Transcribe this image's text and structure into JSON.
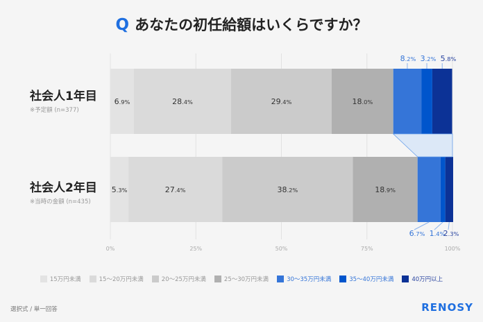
{
  "title": {
    "q": "Q",
    "text": "あなたの初任給額はいくらですか？"
  },
  "chart_data": {
    "type": "stacked-bar-horizontal",
    "categories": [
      {
        "label": "社会人1年目",
        "note": "※予定額 (n=377)"
      },
      {
        "label": "社会人2年目",
        "note": "※当時の金額 (n=435)"
      }
    ],
    "series": [
      {
        "name": "15万円未満",
        "color": "#e3e3e3",
        "values": [
          6.9,
          5.3
        ]
      },
      {
        "name": "15〜20万円未満",
        "color": "#dadada",
        "values": [
          28.4,
          27.4
        ]
      },
      {
        "name": "20〜25万円未満",
        "color": "#cbcbcb",
        "values": [
          29.4,
          38.2
        ]
      },
      {
        "name": "25〜30万円未満",
        "color": "#b0b0b0",
        "values": [
          18.0,
          18.9
        ]
      },
      {
        "name": "30〜35万円未満",
        "color": "#3575d8",
        "values": [
          8.2,
          6.7
        ]
      },
      {
        "name": "35〜40万円未満",
        "color": "#0055cc",
        "values": [
          3.2,
          1.4
        ]
      },
      {
        "name": "40万円以上",
        "color": "#0c3296",
        "values": [
          5.8,
          2.3
        ]
      }
    ],
    "xlim": [
      0,
      100
    ],
    "xticks": [
      "0%",
      "25%",
      "50%",
      "75%",
      "100%"
    ],
    "grid": true,
    "legend": "bottom"
  },
  "footer": {
    "note": "選択式 / 単一回答",
    "logo": "RENOSY"
  }
}
